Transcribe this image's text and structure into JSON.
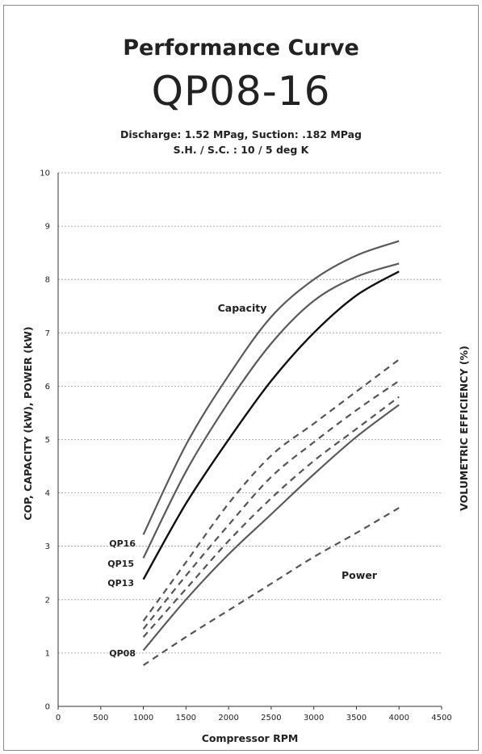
{
  "header": {
    "title": "Performance Curve",
    "model": "QP08-16",
    "subtitle_1": "Discharge: 1.52 MPag, Suction: .182 MPag",
    "subtitle_2": "S.H. / S.C. : 10 / 5 deg K"
  },
  "chart_data": {
    "type": "line",
    "xlabel": "Compressor RPM",
    "ylabel": "COP, CAPACITY (kW), POWER (kW)",
    "y2label": "VOLUMETRIC EFFICIENCY (%)",
    "xlim": [
      0,
      4500
    ],
    "ylim": [
      0,
      10
    ],
    "x_ticks": [
      "0",
      "500",
      "1000",
      "1500",
      "2000",
      "2500",
      "3000",
      "3500",
      "4000",
      "4500"
    ],
    "y_ticks": [
      "0",
      "1",
      "2",
      "3",
      "4",
      "5",
      "6",
      "7",
      "8",
      "9",
      "10"
    ],
    "grid": "horizontal dotted",
    "annotations": [
      "Capacity",
      "Power"
    ],
    "colors": {
      "solid_grey": "#5a5a5a",
      "solid_black": "#111111",
      "dashed": "#555555"
    },
    "x": [
      1000,
      1500,
      2000,
      2500,
      3000,
      3500,
      4000
    ],
    "series": [
      {
        "name": "QP16",
        "group": "capacity",
        "style": "solid",
        "values": [
          3.22,
          4.9,
          6.2,
          7.3,
          8.0,
          8.45,
          8.72
        ]
      },
      {
        "name": "QP15",
        "group": "capacity",
        "style": "solid",
        "values": [
          2.78,
          4.4,
          5.7,
          6.8,
          7.6,
          8.05,
          8.3
        ]
      },
      {
        "name": "QP13",
        "group": "capacity",
        "style": "solid-black",
        "values": [
          2.38,
          3.8,
          5.0,
          6.1,
          7.0,
          7.7,
          8.15
        ]
      },
      {
        "name": "QP08",
        "group": "capacity",
        "style": "solid",
        "values": [
          1.05,
          2.0,
          2.85,
          3.6,
          4.35,
          5.05,
          5.65
        ]
      },
      {
        "name": "",
        "group": "power",
        "style": "dashed",
        "values": [
          1.6,
          2.7,
          3.8,
          4.7,
          5.3,
          5.9,
          6.5
        ]
      },
      {
        "name": "",
        "group": "power",
        "style": "dashed",
        "values": [
          1.45,
          2.45,
          3.4,
          4.3,
          4.95,
          5.55,
          6.1
        ]
      },
      {
        "name": "",
        "group": "power",
        "style": "dashed",
        "values": [
          1.3,
          2.2,
          3.1,
          3.9,
          4.6,
          5.2,
          5.8
        ]
      },
      {
        "name": "",
        "group": "power",
        "style": "dashed",
        "values": [
          0.77,
          1.3,
          1.8,
          2.3,
          2.8,
          3.25,
          3.72
        ]
      }
    ]
  }
}
